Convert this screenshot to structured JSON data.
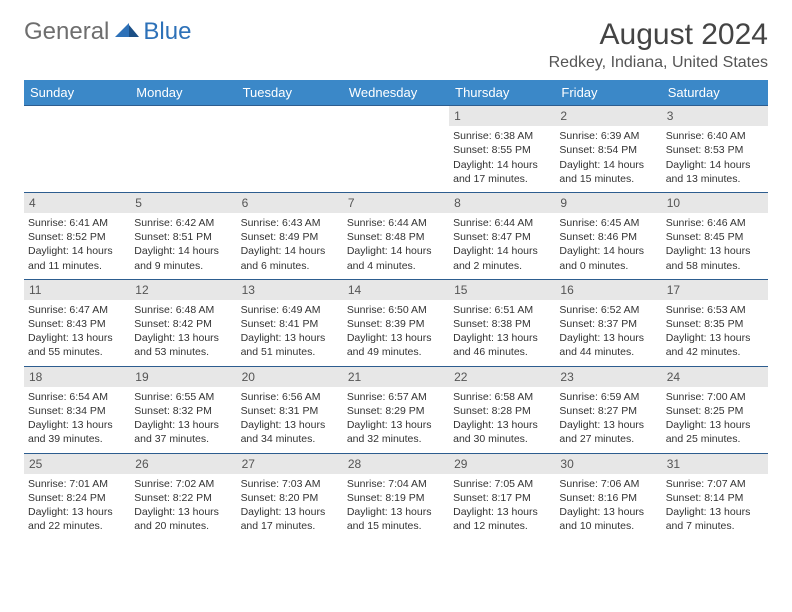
{
  "logo": {
    "general": "General",
    "blue": "Blue"
  },
  "title": "August 2024",
  "location": "Redkey, Indiana, United States",
  "colors": {
    "header_bg": "#3b88c8",
    "header_text": "#ffffff",
    "row_border": "#2d5d8f",
    "daynum_bg": "#e7e7e7",
    "text": "#333333",
    "logo_gray": "#6e6e6e",
    "logo_blue": "#2d71b8",
    "background": "#ffffff"
  },
  "day_headers": [
    "Sunday",
    "Monday",
    "Tuesday",
    "Wednesday",
    "Thursday",
    "Friday",
    "Saturday"
  ],
  "weeks": [
    [
      {
        "empty": true
      },
      {
        "empty": true
      },
      {
        "empty": true
      },
      {
        "empty": true
      },
      {
        "num": "1",
        "sunrise": "Sunrise: 6:38 AM",
        "sunset": "Sunset: 8:55 PM",
        "daylight1": "Daylight: 14 hours",
        "daylight2": "and 17 minutes."
      },
      {
        "num": "2",
        "sunrise": "Sunrise: 6:39 AM",
        "sunset": "Sunset: 8:54 PM",
        "daylight1": "Daylight: 14 hours",
        "daylight2": "and 15 minutes."
      },
      {
        "num": "3",
        "sunrise": "Sunrise: 6:40 AM",
        "sunset": "Sunset: 8:53 PM",
        "daylight1": "Daylight: 14 hours",
        "daylight2": "and 13 minutes."
      }
    ],
    [
      {
        "num": "4",
        "sunrise": "Sunrise: 6:41 AM",
        "sunset": "Sunset: 8:52 PM",
        "daylight1": "Daylight: 14 hours",
        "daylight2": "and 11 minutes."
      },
      {
        "num": "5",
        "sunrise": "Sunrise: 6:42 AM",
        "sunset": "Sunset: 8:51 PM",
        "daylight1": "Daylight: 14 hours",
        "daylight2": "and 9 minutes."
      },
      {
        "num": "6",
        "sunrise": "Sunrise: 6:43 AM",
        "sunset": "Sunset: 8:49 PM",
        "daylight1": "Daylight: 14 hours",
        "daylight2": "and 6 minutes."
      },
      {
        "num": "7",
        "sunrise": "Sunrise: 6:44 AM",
        "sunset": "Sunset: 8:48 PM",
        "daylight1": "Daylight: 14 hours",
        "daylight2": "and 4 minutes."
      },
      {
        "num": "8",
        "sunrise": "Sunrise: 6:44 AM",
        "sunset": "Sunset: 8:47 PM",
        "daylight1": "Daylight: 14 hours",
        "daylight2": "and 2 minutes."
      },
      {
        "num": "9",
        "sunrise": "Sunrise: 6:45 AM",
        "sunset": "Sunset: 8:46 PM",
        "daylight1": "Daylight: 14 hours",
        "daylight2": "and 0 minutes."
      },
      {
        "num": "10",
        "sunrise": "Sunrise: 6:46 AM",
        "sunset": "Sunset: 8:45 PM",
        "daylight1": "Daylight: 13 hours",
        "daylight2": "and 58 minutes."
      }
    ],
    [
      {
        "num": "11",
        "sunrise": "Sunrise: 6:47 AM",
        "sunset": "Sunset: 8:43 PM",
        "daylight1": "Daylight: 13 hours",
        "daylight2": "and 55 minutes."
      },
      {
        "num": "12",
        "sunrise": "Sunrise: 6:48 AM",
        "sunset": "Sunset: 8:42 PM",
        "daylight1": "Daylight: 13 hours",
        "daylight2": "and 53 minutes."
      },
      {
        "num": "13",
        "sunrise": "Sunrise: 6:49 AM",
        "sunset": "Sunset: 8:41 PM",
        "daylight1": "Daylight: 13 hours",
        "daylight2": "and 51 minutes."
      },
      {
        "num": "14",
        "sunrise": "Sunrise: 6:50 AM",
        "sunset": "Sunset: 8:39 PM",
        "daylight1": "Daylight: 13 hours",
        "daylight2": "and 49 minutes."
      },
      {
        "num": "15",
        "sunrise": "Sunrise: 6:51 AM",
        "sunset": "Sunset: 8:38 PM",
        "daylight1": "Daylight: 13 hours",
        "daylight2": "and 46 minutes."
      },
      {
        "num": "16",
        "sunrise": "Sunrise: 6:52 AM",
        "sunset": "Sunset: 8:37 PM",
        "daylight1": "Daylight: 13 hours",
        "daylight2": "and 44 minutes."
      },
      {
        "num": "17",
        "sunrise": "Sunrise: 6:53 AM",
        "sunset": "Sunset: 8:35 PM",
        "daylight1": "Daylight: 13 hours",
        "daylight2": "and 42 minutes."
      }
    ],
    [
      {
        "num": "18",
        "sunrise": "Sunrise: 6:54 AM",
        "sunset": "Sunset: 8:34 PM",
        "daylight1": "Daylight: 13 hours",
        "daylight2": "and 39 minutes."
      },
      {
        "num": "19",
        "sunrise": "Sunrise: 6:55 AM",
        "sunset": "Sunset: 8:32 PM",
        "daylight1": "Daylight: 13 hours",
        "daylight2": "and 37 minutes."
      },
      {
        "num": "20",
        "sunrise": "Sunrise: 6:56 AM",
        "sunset": "Sunset: 8:31 PM",
        "daylight1": "Daylight: 13 hours",
        "daylight2": "and 34 minutes."
      },
      {
        "num": "21",
        "sunrise": "Sunrise: 6:57 AM",
        "sunset": "Sunset: 8:29 PM",
        "daylight1": "Daylight: 13 hours",
        "daylight2": "and 32 minutes."
      },
      {
        "num": "22",
        "sunrise": "Sunrise: 6:58 AM",
        "sunset": "Sunset: 8:28 PM",
        "daylight1": "Daylight: 13 hours",
        "daylight2": "and 30 minutes."
      },
      {
        "num": "23",
        "sunrise": "Sunrise: 6:59 AM",
        "sunset": "Sunset: 8:27 PM",
        "daylight1": "Daylight: 13 hours",
        "daylight2": "and 27 minutes."
      },
      {
        "num": "24",
        "sunrise": "Sunrise: 7:00 AM",
        "sunset": "Sunset: 8:25 PM",
        "daylight1": "Daylight: 13 hours",
        "daylight2": "and 25 minutes."
      }
    ],
    [
      {
        "num": "25",
        "sunrise": "Sunrise: 7:01 AM",
        "sunset": "Sunset: 8:24 PM",
        "daylight1": "Daylight: 13 hours",
        "daylight2": "and 22 minutes."
      },
      {
        "num": "26",
        "sunrise": "Sunrise: 7:02 AM",
        "sunset": "Sunset: 8:22 PM",
        "daylight1": "Daylight: 13 hours",
        "daylight2": "and 20 minutes."
      },
      {
        "num": "27",
        "sunrise": "Sunrise: 7:03 AM",
        "sunset": "Sunset: 8:20 PM",
        "daylight1": "Daylight: 13 hours",
        "daylight2": "and 17 minutes."
      },
      {
        "num": "28",
        "sunrise": "Sunrise: 7:04 AM",
        "sunset": "Sunset: 8:19 PM",
        "daylight1": "Daylight: 13 hours",
        "daylight2": "and 15 minutes."
      },
      {
        "num": "29",
        "sunrise": "Sunrise: 7:05 AM",
        "sunset": "Sunset: 8:17 PM",
        "daylight1": "Daylight: 13 hours",
        "daylight2": "and 12 minutes."
      },
      {
        "num": "30",
        "sunrise": "Sunrise: 7:06 AM",
        "sunset": "Sunset: 8:16 PM",
        "daylight1": "Daylight: 13 hours",
        "daylight2": "and 10 minutes."
      },
      {
        "num": "31",
        "sunrise": "Sunrise: 7:07 AM",
        "sunset": "Sunset: 8:14 PM",
        "daylight1": "Daylight: 13 hours",
        "daylight2": "and 7 minutes."
      }
    ]
  ]
}
